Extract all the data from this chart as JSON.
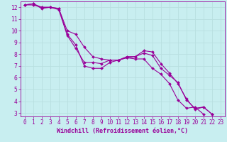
{
  "xlabel": "Windchill (Refroidissement éolien,°C)",
  "bg_color": "#c8eef0",
  "line_color": "#990099",
  "grid_color": "#b8dfe0",
  "xlim": [
    -0.5,
    23.5
  ],
  "ylim": [
    2.7,
    12.5
  ],
  "yticks": [
    3,
    4,
    5,
    6,
    7,
    8,
    9,
    10,
    11,
    12
  ],
  "xticks": [
    0,
    1,
    2,
    3,
    4,
    5,
    6,
    7,
    8,
    9,
    10,
    11,
    12,
    13,
    14,
    15,
    16,
    17,
    18,
    19,
    20,
    21,
    22,
    23
  ],
  "series": [
    {
      "x": [
        0,
        1,
        2,
        3,
        4,
        5,
        6,
        7,
        8,
        9,
        10,
        11,
        12,
        13,
        14,
        15,
        16,
        17,
        18,
        19,
        20,
        21,
        22
      ],
      "y": [
        12.2,
        12.3,
        12.0,
        12.0,
        11.9,
        9.7,
        8.8,
        7.0,
        6.8,
        6.8,
        7.3,
        7.5,
        7.8,
        7.8,
        8.3,
        8.2,
        7.2,
        6.4,
        5.5,
        4.2,
        3.3,
        3.5,
        2.9
      ]
    },
    {
      "x": [
        0,
        1,
        2,
        3,
        4,
        5,
        6,
        7,
        8,
        9,
        10,
        11,
        12,
        13,
        14,
        15,
        16,
        17,
        18,
        19,
        20,
        21,
        22
      ],
      "y": [
        12.2,
        12.3,
        11.9,
        12.0,
        11.8,
        9.6,
        8.5,
        7.3,
        7.3,
        7.2,
        7.5,
        7.5,
        7.7,
        7.8,
        8.1,
        7.9,
        6.8,
        6.2,
        5.6,
        4.1,
        3.4,
        3.5,
        2.9
      ]
    },
    {
      "x": [
        0,
        1,
        2,
        3,
        4,
        5,
        6,
        7,
        8,
        9,
        10,
        11,
        12,
        13,
        14,
        15,
        16,
        17,
        18,
        19,
        20,
        21
      ],
      "y": [
        12.2,
        12.2,
        12.0,
        12.0,
        11.9,
        10.0,
        9.7,
        8.6,
        7.8,
        7.6,
        7.5,
        7.5,
        7.7,
        7.6,
        7.6,
        6.8,
        6.3,
        5.5,
        4.1,
        3.4,
        3.5,
        2.9
      ]
    }
  ],
  "marker_size": 2.0,
  "line_width": 0.8,
  "tick_fontsize": 5.5,
  "xlabel_fontsize": 6.0
}
